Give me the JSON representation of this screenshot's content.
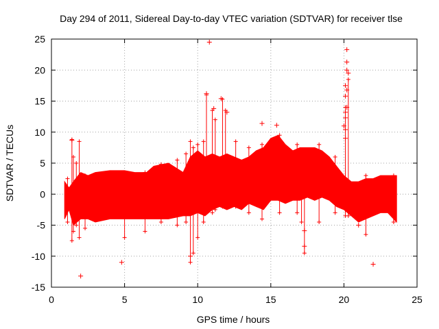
{
  "chart_data": {
    "type": "scatter",
    "title": "Day 294 of 2011, Sidereal Day-to-day VTEC variation (SDTVAR) for receiver tlse",
    "xlabel": "GPS time / hours",
    "ylabel": "SDTVAR / TECUs",
    "xlim": [
      0,
      25
    ],
    "ylim": [
      -15,
      25
    ],
    "xticks": [
      "0",
      "5",
      "10",
      "15",
      "20",
      "25"
    ],
    "yticks": [
      "-15",
      "-10",
      "-5",
      "0",
      "5",
      "10",
      "15",
      "20",
      "25"
    ],
    "grid": true,
    "marker": "plus",
    "color": "#ff0000",
    "series": [
      {
        "name": "SDTVAR",
        "envelope": {
          "x": [
            0.9,
            1.2,
            1.5,
            2.0,
            2.5,
            3.0,
            4.0,
            5.0,
            5.7,
            6.5,
            7.0,
            8.0,
            9.0,
            9.5,
            10.0,
            10.5,
            11.0,
            11.5,
            12.0,
            12.5,
            13.0,
            13.5,
            14.0,
            14.5,
            15.0,
            15.5,
            16.0,
            16.5,
            17.0,
            17.5,
            18.0,
            18.5,
            19.0,
            19.5,
            20.0,
            20.5,
            21.0,
            21.5,
            22.0,
            22.5,
            23.0,
            23.6
          ],
          "upper": [
            2.0,
            1.0,
            2.0,
            3.5,
            3.0,
            3.5,
            3.8,
            3.8,
            3.5,
            3.5,
            4.5,
            5.0,
            3.5,
            6.0,
            7.0,
            6.0,
            6.5,
            6.0,
            6.5,
            6.0,
            5.5,
            6.0,
            7.0,
            7.5,
            9.0,
            9.5,
            8.0,
            7.0,
            7.5,
            7.5,
            7.5,
            7.0,
            6.0,
            4.5,
            3.0,
            2.0,
            2.0,
            2.5,
            2.5,
            3.0,
            3.0,
            3.0
          ],
          "lower": [
            -4.0,
            -2.5,
            -5.0,
            -4.0,
            -4.0,
            -4.5,
            -4.0,
            -4.0,
            -4.0,
            -4.0,
            -4.0,
            -4.0,
            -3.5,
            -3.5,
            -3.0,
            -3.5,
            -2.5,
            -2.0,
            -2.5,
            -2.0,
            -2.5,
            -1.5,
            -2.0,
            -2.5,
            -1.0,
            -1.0,
            -1.5,
            -1.0,
            -1.0,
            -0.5,
            -1.0,
            -0.5,
            -1.0,
            -2.0,
            -2.5,
            -3.5,
            -4.5,
            -4.0,
            -3.5,
            -3.0,
            -3.0,
            -4.5
          ]
        },
        "spikes": [
          {
            "x": 1.1,
            "y1": -4.5,
            "y2": 2.5
          },
          {
            "x": 1.4,
            "y1": -7.5,
            "y2": 8.8
          },
          {
            "x": 1.5,
            "y1": -6.0,
            "y2": 6.0
          },
          {
            "x": 1.7,
            "y1": -5.0,
            "y2": 5.0
          },
          {
            "x": 1.9,
            "y1": -7.0,
            "y2": 8.5
          },
          {
            "x": 2.3,
            "y1": -5.5,
            "y2": 3.0
          },
          {
            "x": 5.0,
            "y1": -7.0,
            "y2": 2.0
          },
          {
            "x": 6.4,
            "y1": -6.0,
            "y2": 3.5
          },
          {
            "x": 7.5,
            "y1": -4.5,
            "y2": 4.8
          },
          {
            "x": 8.6,
            "y1": -5.0,
            "y2": 5.5
          },
          {
            "x": 9.2,
            "y1": -4.5,
            "y2": 6.5
          },
          {
            "x": 9.5,
            "y1": -11.0,
            "y2": 8.5
          },
          {
            "x": 9.7,
            "y1": -9.5,
            "y2": 7.5
          },
          {
            "x": 10.0,
            "y1": -7.0,
            "y2": 8.0
          },
          {
            "x": 10.4,
            "y1": -4.5,
            "y2": 8.5
          },
          {
            "x": 10.6,
            "y1": -3.0,
            "y2": 16.0
          },
          {
            "x": 11.0,
            "y1": -3.0,
            "y2": 13.5
          },
          {
            "x": 11.2,
            "y1": -2.5,
            "y2": 12.0
          },
          {
            "x": 11.7,
            "y1": -2.0,
            "y2": 15.3
          },
          {
            "x": 11.9,
            "y1": -2.0,
            "y2": 13.5
          },
          {
            "x": 12.6,
            "y1": -2.0,
            "y2": 8.5
          },
          {
            "x": 13.5,
            "y1": -3.0,
            "y2": 7.5
          },
          {
            "x": 14.4,
            "y1": -4.0,
            "y2": 8.0
          },
          {
            "x": 15.6,
            "y1": -3.0,
            "y2": 9.5
          },
          {
            "x": 16.8,
            "y1": -3.0,
            "y2": 8.0
          },
          {
            "x": 17.1,
            "y1": -4.5,
            "y2": 7.0
          },
          {
            "x": 17.3,
            "y1": -9.5,
            "y2": 6.0
          },
          {
            "x": 18.3,
            "y1": -4.5,
            "y2": 8.0
          },
          {
            "x": 19.4,
            "y1": -3.0,
            "y2": 6.0
          },
          {
            "x": 20.1,
            "y1": -3.5,
            "y2": 14.0
          },
          {
            "x": 20.3,
            "y1": -3.5,
            "y2": 18.5
          },
          {
            "x": 21.5,
            "y1": -6.5,
            "y2": 3.0
          },
          {
            "x": 23.4,
            "y1": -4.5,
            "y2": 3.0
          }
        ],
        "outliers": [
          {
            "x": 2.0,
            "y": -13.2
          },
          {
            "x": 4.8,
            "y": -11.0
          },
          {
            "x": 1.4,
            "y": 8.7
          },
          {
            "x": 10.6,
            "y": 16.2
          },
          {
            "x": 10.8,
            "y": 24.5
          },
          {
            "x": 11.1,
            "y": 13.8
          },
          {
            "x": 11.6,
            "y": 15.4
          },
          {
            "x": 12.0,
            "y": 13.2
          },
          {
            "x": 14.4,
            "y": 11.4
          },
          {
            "x": 15.4,
            "y": 11.1
          },
          {
            "x": 17.3,
            "y": -8.4
          },
          {
            "x": 17.3,
            "y": -5.9
          },
          {
            "x": 20.2,
            "y": 23.3
          },
          {
            "x": 20.2,
            "y": 21.3
          },
          {
            "x": 20.2,
            "y": 20.0
          },
          {
            "x": 20.3,
            "y": 19.5
          },
          {
            "x": 20.1,
            "y": 17.5
          },
          {
            "x": 20.2,
            "y": 16.8
          },
          {
            "x": 20.1,
            "y": 15.8
          },
          {
            "x": 20.2,
            "y": 14.0
          },
          {
            "x": 20.1,
            "y": 13.2
          },
          {
            "x": 20.1,
            "y": 12.3
          },
          {
            "x": 20.0,
            "y": 11.0
          },
          {
            "x": 20.1,
            "y": 10.4
          },
          {
            "x": 20.1,
            "y": 9.0
          },
          {
            "x": 22.0,
            "y": -11.3
          },
          {
            "x": 21.0,
            "y": -5.0
          },
          {
            "x": 9.5,
            "y": -10.0
          }
        ]
      }
    ]
  }
}
